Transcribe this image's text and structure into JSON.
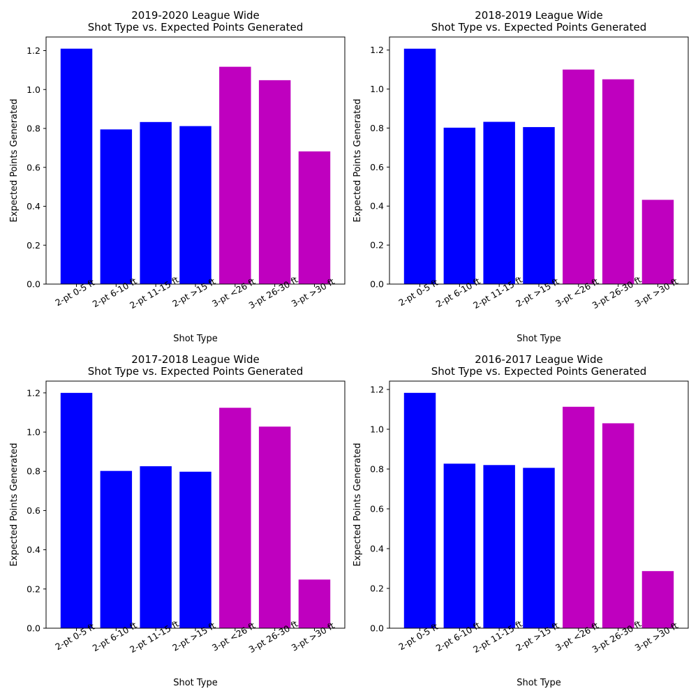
{
  "chart_data": [
    {
      "type": "bar",
      "title": "2019-2020 League Wide\nShot Type vs. Expected Points Generated",
      "xlabel": "Shot Type",
      "ylabel": "Expected Points Generated",
      "categories": [
        "2-pt 0-5 ft",
        "2-pt 6-10 ft",
        "2-pt 11-15 ft",
        "2-pt >15 ft",
        "3-pt <26 ft",
        "3-pt 26-30 ft",
        "3-pt >30 ft"
      ],
      "values": [
        1.21,
        0.795,
        0.833,
        0.812,
        1.117,
        1.048,
        0.682
      ],
      "bar_colors": [
        "#0000ff",
        "#0000ff",
        "#0000ff",
        "#0000ff",
        "#bf00bf",
        "#bf00bf",
        "#bf00bf"
      ],
      "yticks": [
        "0.0",
        "0.2",
        "0.4",
        "0.6",
        "0.8",
        "1.0",
        "1.2"
      ],
      "ylim": [
        0,
        1.27
      ],
      "grid": false
    },
    {
      "type": "bar",
      "title": "2018-2019 League Wide\nShot Type vs. Expected Points Generated",
      "xlabel": "Shot Type",
      "ylabel": "Expected Points Generated",
      "categories": [
        "2-pt 0-5 ft",
        "2-pt 6-10 ft",
        "2-pt 11-15 ft",
        "2-pt >15 ft",
        "3-pt <26 ft",
        "3-pt 26-30 ft",
        "3-pt >30 ft"
      ],
      "values": [
        1.207,
        0.802,
        0.832,
        0.805,
        1.1,
        1.05,
        0.432
      ],
      "bar_colors": [
        "#0000ff",
        "#0000ff",
        "#0000ff",
        "#0000ff",
        "#bf00bf",
        "#bf00bf",
        "#bf00bf"
      ],
      "yticks": [
        "0.0",
        "0.2",
        "0.4",
        "0.6",
        "0.8",
        "1.0",
        "1.2"
      ],
      "ylim": [
        0,
        1.267
      ],
      "grid": false
    },
    {
      "type": "bar",
      "title": "2017-2018 League Wide\nShot Type vs. Expected Points Generated",
      "xlabel": "Shot Type",
      "ylabel": "Expected Points Generated",
      "categories": [
        "2-pt 0-5 ft",
        "2-pt 6-10 ft",
        "2-pt 11-15 ft",
        "2-pt >15 ft",
        "3-pt <26 ft",
        "3-pt 26-30 ft",
        "3-pt >30 ft"
      ],
      "values": [
        1.2,
        0.802,
        0.826,
        0.798,
        1.124,
        1.028,
        0.248
      ],
      "bar_colors": [
        "#0000ff",
        "#0000ff",
        "#0000ff",
        "#0000ff",
        "#bf00bf",
        "#bf00bf",
        "#bf00bf"
      ],
      "yticks": [
        "0.0",
        "0.2",
        "0.4",
        "0.6",
        "0.8",
        "1.0",
        "1.2"
      ],
      "ylim": [
        0,
        1.26
      ],
      "grid": false
    },
    {
      "type": "bar",
      "title": "2016-2017 League Wide\nShot Type vs. Expected Points Generated",
      "xlabel": "Shot Type",
      "ylabel": "Expected Points Generated",
      "categories": [
        "2-pt 0-5 ft",
        "2-pt 6-10 ft",
        "2-pt 11-15 ft",
        "2-pt >15 ft",
        "3-pt <26 ft",
        "3-pt 26-30 ft",
        "3-pt >30 ft"
      ],
      "values": [
        1.183,
        0.827,
        0.82,
        0.806,
        1.113,
        1.03,
        0.287
      ],
      "bar_colors": [
        "#0000ff",
        "#0000ff",
        "#0000ff",
        "#0000ff",
        "#bf00bf",
        "#bf00bf",
        "#bf00bf"
      ],
      "yticks": [
        "0.0",
        "0.2",
        "0.4",
        "0.6",
        "0.8",
        "1.0",
        "1.2"
      ],
      "ylim": [
        0,
        1.242
      ],
      "grid": false
    }
  ]
}
